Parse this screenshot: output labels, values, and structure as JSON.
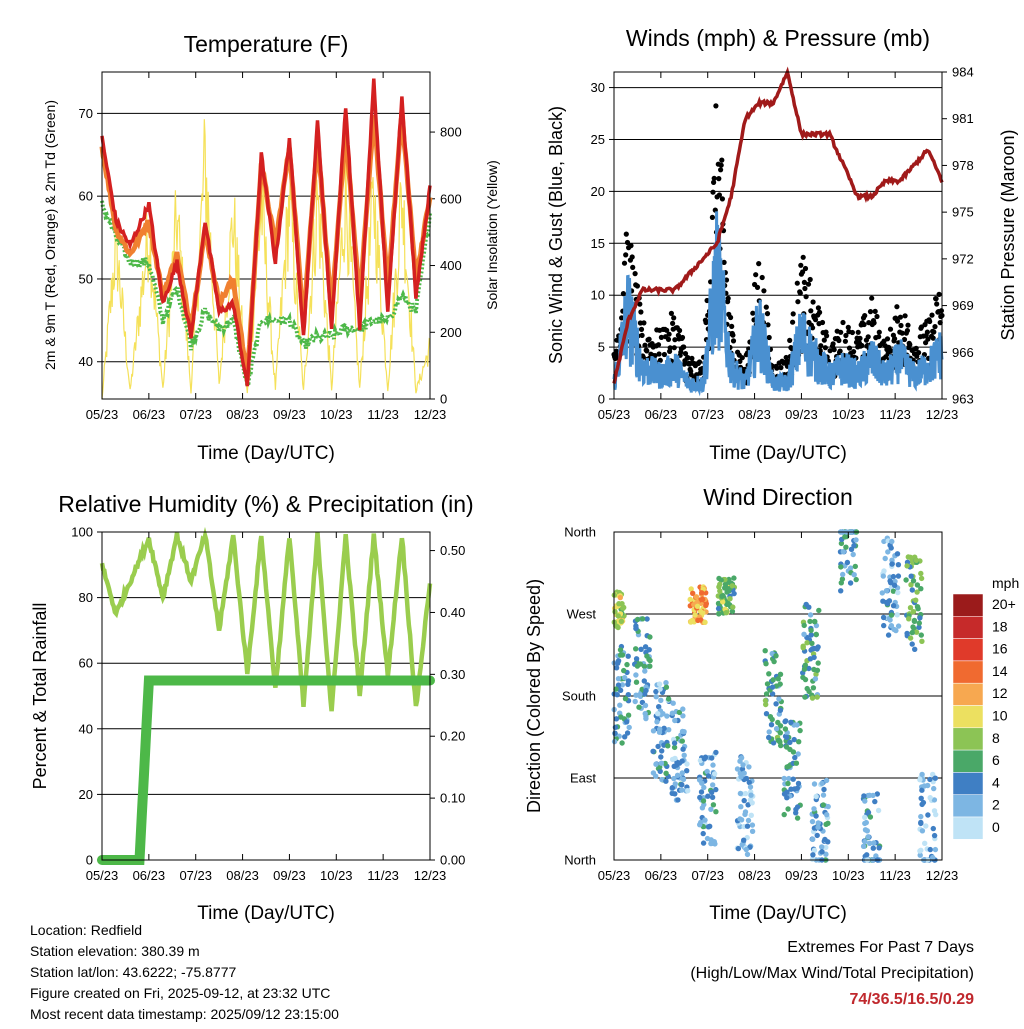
{
  "x_ticks": [
    "05/23",
    "06/23",
    "07/23",
    "08/23",
    "09/23",
    "10/23",
    "11/23",
    "12/23"
  ],
  "x_label": "Time (Day/UTC)",
  "footer": {
    "location": "Location: Redfield",
    "elevation": "Station elevation: 380.39 m",
    "latlon": "Station lat/lon: 43.6222; -75.8777",
    "created": "Figure created on Fri, 2025-09-12, at 23:32 UTC",
    "recent": "Most recent data timestamp: 2025/09/12 23:15:00",
    "extremes_title": "Extremes For Past 7 Days",
    "extremes_sub": "(High/Low/Max Wind/Total Precipitation)",
    "extremes_values": "74/36.5/16.5/0.29"
  },
  "colors": {
    "temp_2m": "#d42020",
    "temp_9m": "#f08030",
    "dewpoint": "#4db848",
    "solar": "#f5e15a",
    "pressure": "#a01a1a",
    "gust": "#000000",
    "sonic": "#4a90d0",
    "rh": "#9acd4e",
    "precip": "#4db848"
  },
  "chart_data": [
    {
      "id": "temperature",
      "type": "line",
      "title": "Temperature (F)",
      "ylabel": "2m & 9m T (Red, Orange) & 2m Td (Green)",
      "y2label": "Solar Insolation (Yellow)",
      "ylim": [
        35.5,
        75
      ],
      "y_ticks": [
        40,
        50,
        60,
        70
      ],
      "y2lim": [
        0,
        980
      ],
      "y2_ticks": [
        0,
        200,
        400,
        600,
        800
      ],
      "x": [
        0,
        0.3,
        0.6,
        1,
        1.3,
        1.6,
        1.9,
        2.2,
        2.5,
        2.8,
        3.1,
        3.4,
        3.7,
        4,
        4.3,
        4.6,
        4.9,
        5.2,
        5.5,
        5.8,
        6.1,
        6.4,
        6.7,
        7
      ],
      "series": [
        {
          "name": "2m T",
          "values": [
            67,
            57,
            54,
            59,
            47,
            52,
            43,
            57,
            46,
            47,
            37,
            65,
            52,
            67,
            43,
            69,
            44,
            71,
            44,
            74,
            46,
            72,
            48,
            61
          ]
        },
        {
          "name": "9m T",
          "values": [
            66,
            56,
            53,
            57,
            48,
            53,
            44,
            56,
            47,
            50,
            38,
            64,
            54,
            66,
            45,
            67,
            46,
            68,
            47,
            70,
            49,
            70,
            50,
            60
          ]
        },
        {
          "name": "2m Td",
          "values": [
            59,
            55,
            52,
            52,
            45,
            49,
            42,
            46,
            44,
            45,
            37,
            45,
            45,
            45,
            42,
            43,
            43,
            44,
            44,
            45,
            45,
            48,
            46,
            58
          ]
        },
        {
          "name": "Solar Insolation",
          "values": [
            0,
            600,
            30,
            650,
            40,
            700,
            30,
            920,
            50,
            700,
            20,
            750,
            40,
            760,
            30,
            770,
            40,
            800,
            40,
            780,
            40,
            790,
            30,
            200
          ]
        }
      ]
    },
    {
      "id": "winds",
      "type": "scatter",
      "title": "Winds (mph) & Pressure (mb)",
      "ylabel": "Sonic Wind & Gust (Blue, Black)",
      "y2label": "Station Pressure (Maroon)",
      "ylim": [
        0,
        31.5
      ],
      "y_ticks": [
        0,
        5,
        10,
        15,
        20,
        25,
        30
      ],
      "y2lim": [
        963,
        984
      ],
      "y2_ticks": [
        963,
        966,
        969,
        972,
        975,
        978,
        981,
        984
      ],
      "x": [
        0,
        0.3,
        0.6,
        1,
        1.3,
        1.6,
        1.9,
        2.2,
        2.5,
        2.8,
        3.1,
        3.4,
        3.7,
        4,
        4.3,
        4.6,
        4.9,
        5.2,
        5.5,
        5.8,
        6.1,
        6.4,
        6.7,
        7
      ],
      "series": [
        {
          "name": "Gust",
          "values": [
            5,
            16,
            7,
            6,
            8,
            4,
            3,
            28,
            7,
            3,
            14,
            3,
            4,
            13,
            9,
            5,
            7,
            6,
            9,
            5,
            9,
            6,
            7,
            11
          ]
        },
        {
          "name": "Sonic Wind",
          "values": [
            2,
            11,
            4,
            3,
            4,
            2,
            2,
            16,
            4,
            2,
            9,
            2,
            2,
            8,
            5,
            3,
            4,
            3,
            5,
            3,
            5,
            3,
            4,
            6
          ]
        },
        {
          "name": "Station Pressure",
          "values": [
            964,
            968,
            970,
            970,
            970,
            971,
            972,
            973,
            976,
            981,
            982,
            982,
            984,
            980,
            980,
            980,
            978,
            976,
            976,
            977,
            977,
            978,
            979,
            977
          ]
        }
      ]
    },
    {
      "id": "humidity",
      "type": "line",
      "title": "Relative Humidity (%) & Precipitation (in)",
      "ylabel": "Percent & Total Rainfall",
      "ylim": [
        0,
        100
      ],
      "y_ticks": [
        0,
        20,
        40,
        60,
        80,
        100
      ],
      "y2lim": [
        0,
        0.53
      ],
      "y2_ticks": [
        "0.00",
        "0.10",
        "0.20",
        "0.30",
        "0.40",
        "0.50"
      ],
      "x": [
        0,
        0.3,
        0.6,
        1,
        1.3,
        1.6,
        1.9,
        2.2,
        2.5,
        2.8,
        3.1,
        3.4,
        3.7,
        4,
        4.3,
        4.6,
        4.9,
        5.2,
        5.5,
        5.8,
        6.1,
        6.4,
        6.7,
        7
      ],
      "series": [
        {
          "name": "Relative Humidity",
          "values": [
            90,
            75,
            85,
            98,
            80,
            99,
            85,
            99,
            70,
            99,
            57,
            99,
            52,
            99,
            47,
            99,
            45,
            99,
            50,
            99,
            56,
            99,
            46,
            85
          ]
        },
        {
          "name": "Total Precipitation",
          "values": [
            0,
            0,
            0.005,
            0.29,
            0.29,
            0.29,
            0.29,
            0.29,
            0.29,
            0.29,
            0.29,
            0.29,
            0.29,
            0.29,
            0.29,
            0.29,
            0.29,
            0.29,
            0.29,
            0.29,
            0.29,
            0.29,
            0.29,
            0.29
          ]
        }
      ]
    },
    {
      "id": "direction",
      "type": "scatter",
      "title": "Wind Direction",
      "ylabel": "Direction (Colored By Speed)",
      "y_ticks": [
        "North",
        "East",
        "South",
        "West",
        "North"
      ],
      "ylim": [
        0,
        360
      ],
      "legend_title": "mph",
      "legend_labels": [
        "20+",
        "18",
        "16",
        "14",
        "12",
        "10",
        "8",
        "6",
        "4",
        "2",
        "0"
      ],
      "legend_colors": [
        "#9b1b1b",
        "#c62a2a",
        "#e03a2a",
        "#f06a30",
        "#f7a850",
        "#ece060",
        "#8cc455",
        "#4aa868",
        "#3f7fc4",
        "#7db6e3",
        "#bfe3f6"
      ],
      "clusters": [
        {
          "x": 0.05,
          "dir": 275,
          "speed": 9
        },
        {
          "x": 0.15,
          "dir": 180,
          "speed": 4
        },
        {
          "x": 0.6,
          "dir": 210,
          "speed": 4
        },
        {
          "x": 1.0,
          "dir": 140,
          "speed": 3
        },
        {
          "x": 1.4,
          "dir": 120,
          "speed": 3
        },
        {
          "x": 1.8,
          "dir": 280,
          "speed": 12
        },
        {
          "x": 2.0,
          "dir": 70,
          "speed": 3
        },
        {
          "x": 2.4,
          "dir": 290,
          "speed": 7
        },
        {
          "x": 2.8,
          "dir": 60,
          "speed": 2
        },
        {
          "x": 3.4,
          "dir": 180,
          "speed": 5
        },
        {
          "x": 3.8,
          "dir": 100,
          "speed": 4
        },
        {
          "x": 4.2,
          "dir": 230,
          "speed": 5
        },
        {
          "x": 4.4,
          "dir": 40,
          "speed": 3
        },
        {
          "x": 5.0,
          "dir": 350,
          "speed": 4
        },
        {
          "x": 5.5,
          "dir": 20,
          "speed": 3
        },
        {
          "x": 5.9,
          "dir": 300,
          "speed": 3
        },
        {
          "x": 6.4,
          "dir": 280,
          "speed": 6
        },
        {
          "x": 6.7,
          "dir": 40,
          "speed": 2
        }
      ]
    }
  ]
}
